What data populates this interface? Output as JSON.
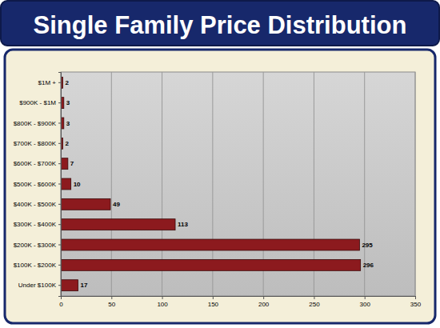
{
  "chart_data": {
    "type": "bar",
    "title": "Single Family Price Distribution",
    "orientation": "horizontal",
    "categories": [
      "$1M +",
      "$900K - $1M",
      "$800K - $900K",
      "$700K - $800K",
      "$600K - $700K",
      "$500K - $600K",
      "$400K - $500K",
      "$300K - $400K",
      "$200K - $300K",
      "$100K - $200K",
      "Under $100K"
    ],
    "values": [
      2,
      3,
      3,
      2,
      7,
      10,
      49,
      113,
      295,
      296,
      17
    ],
    "color": "#8c1a1e",
    "xlim": [
      0,
      350
    ],
    "xticks": [
      0,
      50,
      100,
      150,
      200,
      250,
      300,
      350
    ],
    "grid": true,
    "data_labels": true
  }
}
